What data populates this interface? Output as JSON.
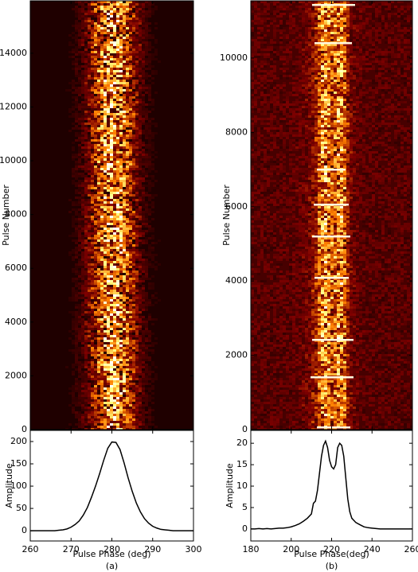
{
  "chart_data": [
    {
      "type": "image",
      "ylabel": "Pulse Number",
      "ylim": [
        0,
        15950
      ],
      "yticks": [
        0,
        2000,
        4000,
        6000,
        8000,
        10000,
        12000,
        14000
      ],
      "colormap": "afmhot"
    },
    {
      "type": "line",
      "xlabel": "Pulse Phase (deg)",
      "ylabel": "Amplitude",
      "caption": "(a)",
      "xlim": [
        260,
        300
      ],
      "xticks": [
        260,
        270,
        280,
        290,
        300
      ],
      "ylim": [
        -23,
        225
      ],
      "yticks": [
        0,
        50,
        100,
        150,
        200
      ],
      "color": "#000000",
      "x": [
        260,
        261,
        262,
        263,
        264,
        265,
        266,
        267,
        268,
        269,
        270,
        271,
        272,
        273,
        274,
        275,
        276,
        277,
        278,
        279,
        280,
        281,
        282,
        283,
        284,
        285,
        286,
        287,
        288,
        289,
        290,
        291,
        292,
        293,
        294,
        295,
        296,
        297,
        298,
        299,
        300
      ],
      "values": [
        0,
        0,
        0,
        0,
        0,
        0,
        0,
        1,
        2,
        4,
        8,
        14,
        22,
        35,
        52,
        75,
        100,
        128,
        158,
        185,
        199,
        198,
        182,
        152,
        118,
        88,
        62,
        42,
        27,
        17,
        10,
        6,
        3,
        2,
        1,
        0,
        0,
        0,
        0,
        0,
        0
      ]
    },
    {
      "type": "image",
      "ylabel": "Pulse Number",
      "ylim": [
        0,
        11540
      ],
      "yticks": [
        0,
        2000,
        4000,
        6000,
        8000,
        10000
      ],
      "colormap": "afmhot"
    },
    {
      "type": "line",
      "xlabel": "Pulse Phase(deg)",
      "ylabel": "Amplitude",
      "caption": "(b)",
      "xlim": [
        180,
        260
      ],
      "xticks": [
        180,
        200,
        220,
        240,
        260
      ],
      "ylim": [
        -2.8,
        23
      ],
      "yticks": [
        0,
        5,
        10,
        15,
        20
      ],
      "color": "#000000",
      "x": [
        180,
        182,
        184,
        186,
        188,
        190,
        192,
        194,
        196,
        198,
        200,
        202,
        204,
        206,
        208,
        210,
        211,
        212,
        213,
        214,
        215,
        216,
        217,
        218,
        219,
        220,
        221,
        222,
        223,
        224,
        225,
        226,
        227,
        228,
        229,
        230,
        232,
        234,
        236,
        238,
        240,
        242,
        244,
        248,
        252,
        256,
        260
      ],
      "values": [
        0,
        0,
        0.1,
        0,
        0.1,
        0,
        0.1,
        0.2,
        0.2,
        0.3,
        0.5,
        0.8,
        1.2,
        1.8,
        2.5,
        3.5,
        6,
        6.5,
        9,
        13,
        17,
        19.5,
        20.5,
        19,
        16,
        14.5,
        14,
        15,
        19,
        20,
        19.5,
        17,
        12,
        7,
        4,
        2.5,
        1.5,
        1,
        0.5,
        0.3,
        0.2,
        0.1,
        0,
        0,
        0,
        0,
        0
      ]
    }
  ]
}
